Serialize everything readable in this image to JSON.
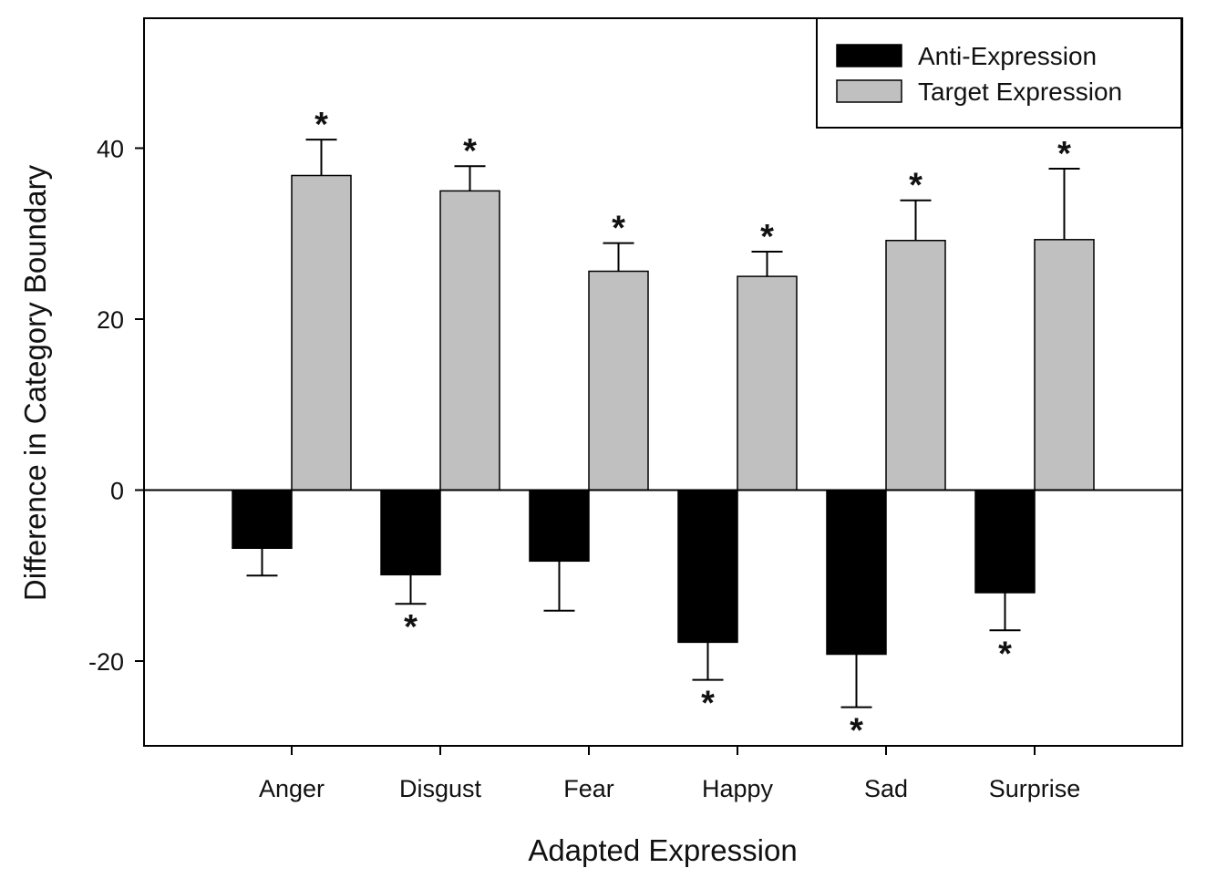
{
  "chart_data": {
    "type": "bar",
    "xlabel": "Adapted Expression",
    "ylabel": "Difference in Category Boundary",
    "ylim": [
      -30,
      55
    ],
    "yticks": [
      -20,
      0,
      20,
      40
    ],
    "categories": [
      "Anger",
      "Disgust",
      "Fear",
      "Happy",
      "Sad",
      "Surprise"
    ],
    "legend_position": "top-right",
    "series": [
      {
        "name": "Anti-Expression",
        "color": "#000000",
        "values": [
          -6.8,
          -9.9,
          -8.3,
          -17.8,
          -19.2,
          -12.0
        ],
        "error": [
          3.2,
          3.4,
          5.8,
          4.4,
          6.2,
          4.4
        ],
        "significant": [
          false,
          true,
          false,
          true,
          true,
          true
        ]
      },
      {
        "name": "Target Expression",
        "color": "#c0c0c0",
        "values": [
          36.8,
          35.0,
          25.6,
          25.0,
          29.2,
          29.3
        ],
        "error": [
          4.2,
          2.9,
          3.3,
          2.9,
          4.7,
          8.3
        ],
        "significant": [
          true,
          true,
          true,
          true,
          true,
          true
        ]
      }
    ],
    "significance_marker": "*"
  }
}
